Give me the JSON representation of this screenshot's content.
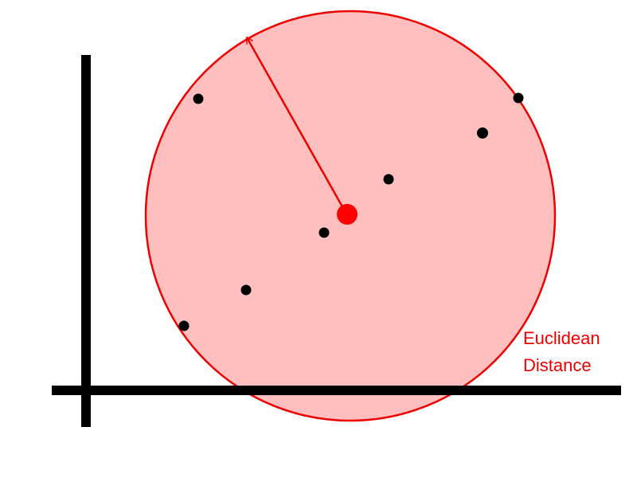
{
  "diagram": {
    "label_lines": [
      "Euclidean",
      "Distance"
    ]
  },
  "colors": {
    "background": "#ffffff",
    "axes": "#000000",
    "circle_fill": "#ffbfbf",
    "circle_stroke": "#ee0000",
    "accent": "#ff0000",
    "points": "#000000",
    "label": "#ee0000"
  },
  "elements": {
    "axes": "black x and y axes",
    "circle": "circle around the center point",
    "radius_arrow": "arrow from center to circle edge",
    "center_point": "large red dot",
    "data_points": "7 black dots"
  }
}
